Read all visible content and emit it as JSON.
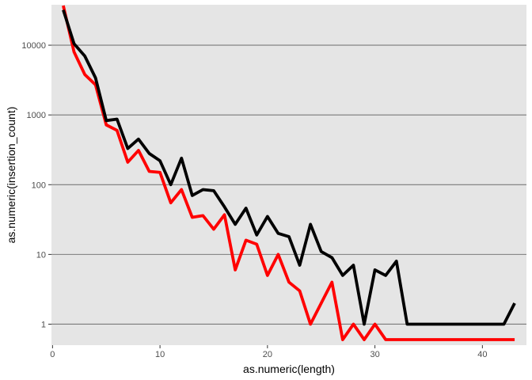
{
  "chart_data": {
    "type": "line",
    "title": "",
    "xlabel": "as.numeric(length)",
    "ylabel": "as.numeric(insertion_count)",
    "xlim": [
      -0.1,
      44.1
    ],
    "ylim": [
      0.5,
      38000
    ],
    "y_scale": "log10",
    "grid": "major horizontal lines only",
    "legend": "none",
    "x_ticks": [
      0,
      10,
      20,
      30,
      40
    ],
    "x_tick_labels": [
      "0",
      "10",
      "20",
      "30",
      "40"
    ],
    "y_ticks": [
      1,
      10,
      100,
      1000,
      10000
    ],
    "y_tick_labels": [
      "1",
      "10",
      "100",
      "1000",
      "10000"
    ],
    "colors": {
      "panel": "#e5e5e5",
      "grid": "#7a7a7a",
      "tick": "#333333"
    },
    "series": [
      {
        "color": "#ff0000",
        "x": [
          1,
          2,
          3,
          4,
          5,
          6,
          7,
          8,
          9,
          10,
          11,
          12,
          13,
          14,
          15,
          16,
          17,
          18,
          19,
          20,
          21,
          22,
          23,
          24,
          25,
          26,
          27,
          28,
          29,
          30,
          31,
          32,
          33,
          34,
          35,
          36,
          37,
          38,
          39,
          40,
          41,
          42,
          43
        ],
        "y": [
          37000,
          8000,
          3800,
          2700,
          720,
          600,
          210,
          310,
          155,
          150,
          55,
          85,
          34,
          36,
          23,
          37,
          6,
          16,
          14,
          5,
          10,
          4,
          3,
          1,
          2,
          4,
          0.6,
          1,
          0.6,
          1,
          0.6,
          0.6,
          0.6,
          0.6,
          0.6,
          0.6,
          0.6,
          0.6,
          0.6,
          0.6,
          0.6,
          0.6,
          0.6
        ]
      },
      {
        "color": "#000000",
        "x": [
          1,
          2,
          3,
          4,
          5,
          6,
          7,
          8,
          9,
          10,
          11,
          12,
          13,
          14,
          15,
          16,
          17,
          18,
          19,
          20,
          21,
          22,
          23,
          24,
          25,
          26,
          27,
          28,
          29,
          30,
          31,
          32,
          33,
          34,
          35,
          36,
          37,
          38,
          39,
          40,
          41,
          42,
          43
        ],
        "y": [
          32000,
          10500,
          7000,
          3400,
          830,
          870,
          330,
          450,
          280,
          220,
          100,
          240,
          70,
          85,
          82,
          48,
          27,
          46,
          19,
          35,
          20,
          18,
          7,
          27,
          11,
          9,
          5,
          7,
          1,
          6,
          5,
          8,
          1,
          1,
          1,
          1,
          1,
          1,
          1,
          1,
          1,
          1,
          2
        ]
      }
    ]
  }
}
